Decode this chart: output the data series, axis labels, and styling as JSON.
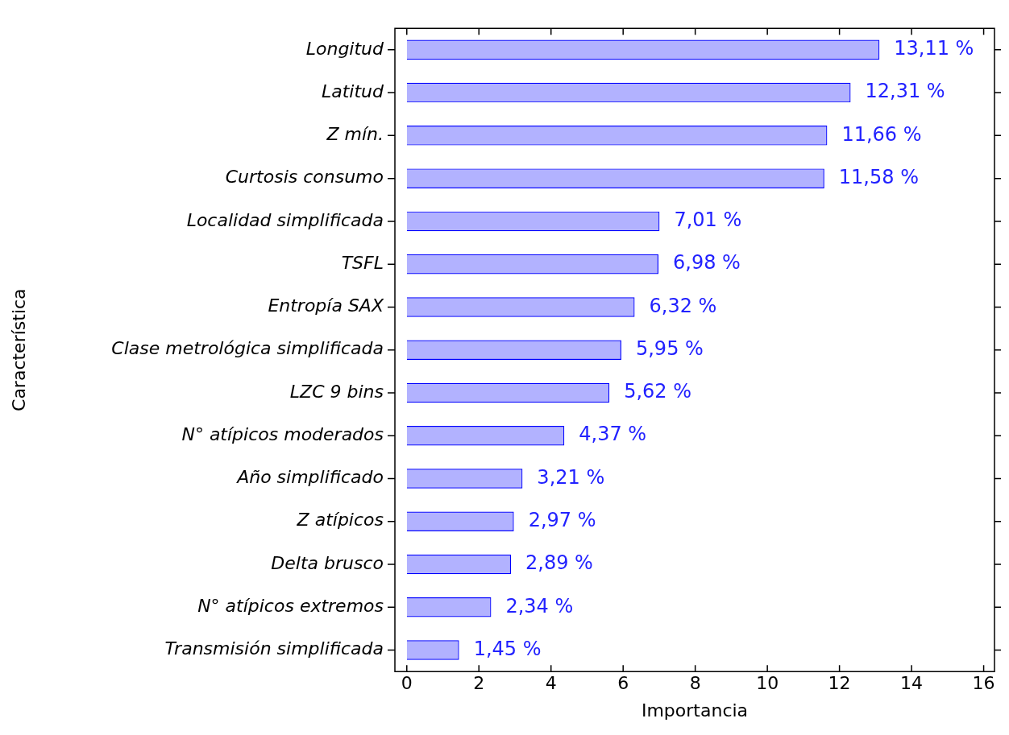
{
  "chart_data": {
    "type": "bar",
    "orientation": "horizontal",
    "xlabel": "Importancia",
    "ylabel": "Característica",
    "categories": [
      "Longitud",
      "Latitud",
      "Z mín.",
      "Curtosis consumo",
      "Localidad simplificada",
      "TSFL",
      "Entropía SAX",
      "Clase metrológica simplificada",
      "LZC 9 bins",
      "N° atípicos moderados",
      "Año simplificado",
      "Z atípicos",
      "Delta brusco",
      "N° atípicos extremos",
      "Transmisión simplificada"
    ],
    "values": [
      13.11,
      12.31,
      11.66,
      11.58,
      7.01,
      6.98,
      6.32,
      5.95,
      5.62,
      4.37,
      3.21,
      2.97,
      2.89,
      2.34,
      1.45
    ],
    "value_labels": [
      "13,11 %",
      "12,31 %",
      "11,66 %",
      "11,58 %",
      "7,01 %",
      "6,98 %",
      "6,32 %",
      "5,95 %",
      "5,62 %",
      "4,37 %",
      "3,21 %",
      "2,97 %",
      "2,89 %",
      "2,34 %",
      "1,45 %"
    ],
    "color": "#0000ff",
    "xlim": [
      -0.33,
      16.3
    ],
    "xticks": [
      0,
      2,
      4,
      6,
      8,
      10,
      12,
      14,
      16
    ],
    "grid": false,
    "legend": false
  }
}
